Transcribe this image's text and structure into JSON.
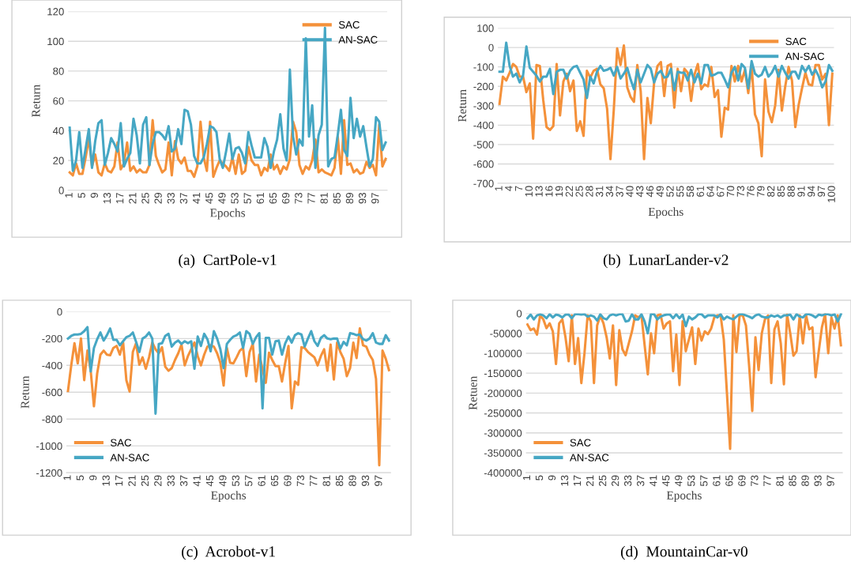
{
  "chart_data": [
    {
      "type": "line",
      "title": "(a)  CartPole-v1",
      "xlabel": "Epochs",
      "ylabel": "Return",
      "ylim": [
        0,
        120
      ],
      "yticks": [
        0,
        20,
        40,
        60,
        80,
        100,
        120
      ],
      "grid": "y",
      "legend": "top right",
      "categories": [
        "1",
        null,
        null,
        null,
        "5",
        null,
        null,
        null,
        "9",
        null,
        null,
        null,
        "13",
        null,
        null,
        null,
        "17",
        null,
        null,
        null,
        "21",
        null,
        null,
        null,
        "25",
        null,
        null,
        null,
        "29",
        null,
        null,
        null,
        "33",
        null,
        null,
        null,
        "37",
        null,
        null,
        null,
        "41",
        null,
        null,
        null,
        "45",
        null,
        null,
        null,
        "49",
        null,
        null,
        null,
        "53",
        null,
        null,
        null,
        "57",
        null,
        null,
        null,
        "61",
        null,
        null,
        null,
        "65",
        null,
        null,
        null,
        "69",
        null,
        null,
        null,
        "73",
        null,
        null,
        null,
        "77",
        null,
        null,
        null,
        "81",
        null,
        null,
        null,
        "85",
        null,
        null,
        null,
        "89",
        null,
        null,
        null,
        "93",
        null,
        null,
        null,
        "97",
        null,
        null,
        null
      ],
      "series": [
        {
          "name": "SAC",
          "color": "#f4913a",
          "values": [
            12,
            10,
            18,
            11,
            11,
            22,
            35,
            16,
            24,
            12,
            10,
            18,
            13,
            12,
            16,
            32,
            14,
            18,
            32,
            13,
            16,
            12,
            14,
            12,
            12,
            17,
            47,
            23,
            17,
            12,
            14,
            32,
            10,
            33,
            21,
            18,
            22,
            13,
            13,
            9,
            16,
            46,
            22,
            13,
            46,
            9,
            15,
            20,
            18,
            16,
            13,
            22,
            11,
            24,
            11,
            13,
            29,
            20,
            17,
            17,
            10,
            15,
            13,
            24,
            14,
            17,
            11,
            16,
            14,
            21,
            46,
            39,
            17,
            11,
            16,
            14,
            20,
            34,
            12,
            14,
            12,
            11,
            10,
            15,
            36,
            11,
            47,
            17,
            18,
            12,
            14,
            11,
            12,
            19,
            15,
            17,
            10,
            44,
            16,
            21
          ]
        },
        {
          "name": "AN-SAC",
          "color": "#46a7c4",
          "values": [
            42,
            13,
            20,
            39,
            15,
            28,
            41,
            15,
            33,
            45,
            47,
            17,
            25,
            35,
            31,
            26,
            45,
            16,
            21,
            25,
            48,
            37,
            18,
            44,
            49,
            17,
            31,
            39,
            39,
            37,
            34,
            43,
            26,
            28,
            41,
            31,
            54,
            53,
            44,
            23,
            18,
            18,
            22,
            31,
            43,
            42,
            39,
            21,
            15,
            26,
            38,
            21,
            28,
            29,
            25,
            18,
            39,
            30,
            22,
            22,
            22,
            35,
            29,
            15,
            26,
            34,
            51,
            28,
            20,
            81,
            36,
            24,
            34,
            30,
            102,
            36,
            57,
            15,
            37,
            44,
            109,
            16,
            21,
            22,
            37,
            54,
            27,
            23,
            62,
            35,
            48,
            36,
            43,
            29,
            16,
            21,
            49,
            46,
            27,
            32
          ]
        }
      ]
    },
    {
      "type": "line",
      "title": "(b)  LunarLander-v2",
      "xlabel": "Epochs",
      "ylabel": "Return",
      "ylim": [
        -700,
        100
      ],
      "yticks": [
        -700,
        -600,
        -500,
        -400,
        -300,
        -200,
        -100,
        0,
        100
      ],
      "grid": "y",
      "legend": "top right",
      "categories": [
        "1",
        null,
        null,
        "4",
        null,
        null,
        "7",
        null,
        null,
        "10",
        null,
        null,
        "13",
        null,
        null,
        "16",
        null,
        null,
        "19",
        null,
        null,
        "22",
        null,
        null,
        "25",
        null,
        null,
        "28",
        null,
        null,
        "31",
        null,
        null,
        "34",
        null,
        null,
        "37",
        null,
        null,
        "40",
        null,
        null,
        "43",
        null,
        null,
        "46",
        null,
        null,
        "49",
        null,
        null,
        "52",
        null,
        null,
        "55",
        null,
        null,
        "58",
        null,
        null,
        "61",
        null,
        null,
        "64",
        null,
        null,
        "67",
        null,
        null,
        "70",
        null,
        null,
        "73",
        null,
        null,
        "76",
        null,
        null,
        "79",
        null,
        null,
        "82",
        null,
        null,
        "85",
        null,
        null,
        "88",
        null,
        null,
        "91",
        null,
        null,
        "94",
        null,
        null,
        "97",
        null,
        null,
        "100"
      ],
      "series": [
        {
          "name": "SAC",
          "color": "#f4913a",
          "values": [
            -290,
            -150,
            -170,
            -130,
            -85,
            -100,
            -150,
            -150,
            -230,
            -185,
            -470,
            -90,
            -95,
            -270,
            -410,
            -425,
            -405,
            -85,
            -350,
            -175,
            -135,
            -225,
            -170,
            -430,
            -380,
            -455,
            -120,
            -155,
            -120,
            -110,
            -190,
            -210,
            -315,
            -575,
            -320,
            -5,
            -90,
            10,
            -205,
            -255,
            -280,
            -90,
            -225,
            -575,
            -260,
            -390,
            -180,
            -95,
            -75,
            -250,
            -95,
            -85,
            -310,
            -110,
            -225,
            -110,
            -130,
            -275,
            -140,
            -85,
            -215,
            -190,
            -200,
            -100,
            -255,
            -220,
            -460,
            -310,
            -320,
            -95,
            -175,
            -95,
            -175,
            -115,
            -235,
            -95,
            -345,
            -390,
            -560,
            -165,
            -330,
            -385,
            -300,
            -115,
            -325,
            -200,
            -100,
            -170,
            -410,
            -295,
            -210,
            -130,
            -190,
            -195,
            -90,
            -90,
            -165,
            -135,
            -400,
            -135
          ]
        },
        {
          "name": "AN-SAC",
          "color": "#46a7c4",
          "values": [
            -125,
            -125,
            25,
            -95,
            -150,
            -135,
            -180,
            -145,
            5,
            -105,
            -125,
            -145,
            -175,
            -150,
            -150,
            -110,
            -240,
            -125,
            -115,
            -115,
            -160,
            -120,
            -100,
            -95,
            -130,
            -165,
            -260,
            -150,
            -185,
            -125,
            -95,
            -120,
            -115,
            -105,
            -145,
            -100,
            -160,
            -135,
            -105,
            -165,
            -215,
            -115,
            -180,
            -135,
            -90,
            -110,
            -180,
            -135,
            -120,
            -155,
            -150,
            -110,
            -220,
            -125,
            -130,
            -130,
            -170,
            -115,
            -180,
            -135,
            -185,
            -90,
            -90,
            -145,
            -140,
            -130,
            -130,
            -165,
            -205,
            -130,
            -100,
            -170,
            -85,
            -105,
            -210,
            -70,
            -135,
            -150,
            -140,
            -100,
            -150,
            -130,
            -95,
            -150,
            -95,
            -130,
            -160,
            -125,
            -125,
            -160,
            -95,
            -125,
            -95,
            -140,
            -115,
            -150,
            -205,
            -175,
            -90,
            -120
          ]
        }
      ]
    },
    {
      "type": "line",
      "title": "(c)  Acrobot-v1",
      "xlabel": "Epochs",
      "ylabel": "Return",
      "ylim": [
        -1200,
        0
      ],
      "yticks": [
        -1200,
        -1000,
        -800,
        -600,
        -400,
        -200,
        0
      ],
      "grid": "y",
      "legend": "bottom left",
      "categories": [
        "1",
        null,
        null,
        null,
        "5",
        null,
        null,
        null,
        "9",
        null,
        null,
        null,
        "13",
        null,
        null,
        null,
        "17",
        null,
        null,
        null,
        "21",
        null,
        null,
        null,
        "25",
        null,
        null,
        null,
        "29",
        null,
        null,
        null,
        "33",
        null,
        null,
        null,
        "37",
        null,
        null,
        null,
        "41",
        null,
        null,
        null,
        "45",
        null,
        null,
        null,
        "49",
        null,
        null,
        null,
        "53",
        null,
        null,
        null,
        "57",
        null,
        null,
        null,
        "61",
        null,
        null,
        null,
        "65",
        null,
        null,
        null,
        "69",
        null,
        null,
        null,
        "73",
        null,
        null,
        null,
        "77",
        null,
        null,
        null,
        "81",
        null,
        null,
        null,
        "85",
        null,
        null,
        null,
        "89",
        null,
        null,
        null,
        "93",
        null,
        null,
        null,
        "97",
        null,
        null,
        null
      ],
      "series": [
        {
          "name": "SAC",
          "color": "#f4913a",
          "values": [
            -590,
            -400,
            -235,
            -385,
            -200,
            -510,
            -290,
            -440,
            -705,
            -460,
            -320,
            -290,
            -320,
            -325,
            -270,
            -255,
            -320,
            -230,
            -510,
            -595,
            -300,
            -235,
            -395,
            -340,
            -425,
            -340,
            -230,
            -280,
            -310,
            -265,
            -410,
            -440,
            -420,
            -360,
            -310,
            -245,
            -400,
            -330,
            -280,
            -230,
            -330,
            -400,
            -320,
            -260,
            -250,
            -260,
            -310,
            -380,
            -550,
            -270,
            -380,
            -385,
            -340,
            -290,
            -270,
            -480,
            -300,
            -240,
            -520,
            -320,
            -430,
            -530,
            -305,
            -360,
            -405,
            -405,
            -520,
            -380,
            -255,
            -720,
            -520,
            -545,
            -265,
            -270,
            -300,
            -320,
            -340,
            -400,
            -330,
            -280,
            -440,
            -245,
            -505,
            -230,
            -300,
            -350,
            -480,
            -420,
            -230,
            -345,
            -125,
            -250,
            -260,
            -320,
            -360,
            -500,
            -1145,
            -290,
            -350,
            -435
          ]
        },
        {
          "name": "AN-SAC",
          "color": "#46a7c4",
          "values": [
            -200,
            -180,
            -170,
            -170,
            -165,
            -145,
            -115,
            -445,
            -270,
            -205,
            -155,
            -215,
            -175,
            -125,
            -210,
            -210,
            -250,
            -220,
            -190,
            -180,
            -155,
            -225,
            -300,
            -200,
            -185,
            -155,
            -200,
            -760,
            -240,
            -235,
            -180,
            -165,
            -260,
            -230,
            -215,
            -240,
            -220,
            -235,
            -220,
            -425,
            -185,
            -255,
            -165,
            -205,
            -295,
            -145,
            -200,
            -280,
            -420,
            -240,
            -210,
            -185,
            -175,
            -155,
            -270,
            -145,
            -165,
            -240,
            -190,
            -160,
            -720,
            -195,
            -195,
            -320,
            -220,
            -215,
            -320,
            -235,
            -185,
            -230,
            -175,
            -160,
            -170,
            -260,
            -200,
            -145,
            -220,
            -255,
            -195,
            -175,
            -200,
            -205,
            -200,
            -200,
            -275,
            -225,
            -250,
            -160,
            -165,
            -175,
            -170,
            -205,
            -215,
            -200,
            -160,
            -230,
            -240,
            -240,
            -175,
            -215
          ]
        }
      ]
    },
    {
      "type": "line",
      "title": "(d)  MountainCar-v0",
      "xlabel": "Epochs",
      "ylabel": "Retuen",
      "ylim": [
        -400000,
        0
      ],
      "yticks": [
        -400000,
        -350000,
        -300000,
        -250000,
        -200000,
        -150000,
        -100000,
        -50000,
        0
      ],
      "grid": "y",
      "legend": "bottom left",
      "categories": [
        "1",
        null,
        null,
        null,
        "5",
        null,
        null,
        null,
        "9",
        null,
        null,
        null,
        "13",
        null,
        null,
        null,
        "17",
        null,
        null,
        null,
        "21",
        null,
        null,
        null,
        "25",
        null,
        null,
        null,
        "29",
        null,
        null,
        null,
        "33",
        null,
        null,
        null,
        "37",
        null,
        null,
        null,
        "41",
        null,
        null,
        null,
        "45",
        null,
        null,
        null,
        "49",
        null,
        null,
        null,
        "53",
        null,
        null,
        null,
        "57",
        null,
        null,
        null,
        "61",
        null,
        null,
        null,
        "65",
        null,
        null,
        null,
        "69",
        null,
        null,
        null,
        "73",
        null,
        null,
        null,
        "77",
        null,
        null,
        null,
        "81",
        null,
        null,
        null,
        "85",
        null,
        null,
        null,
        "89",
        null,
        null,
        null,
        "93",
        null,
        null,
        null,
        "97",
        null,
        null,
        null
      ],
      "series": [
        {
          "name": "SAC",
          "color": "#f4913a",
          "values": [
            -28000,
            -42000,
            -38000,
            -53000,
            -5000,
            -15000,
            -37000,
            -25000,
            -45000,
            -127000,
            -25000,
            -15000,
            -60000,
            -120000,
            -5000,
            -127000,
            -62000,
            -175000,
            -100000,
            -5000,
            -20000,
            -175000,
            -30000,
            -5000,
            -25000,
            -60000,
            -113000,
            -30000,
            -180000,
            -42000,
            -90000,
            -105000,
            -75000,
            -45000,
            -5000,
            -10000,
            -5000,
            -80000,
            -153000,
            -50000,
            -100000,
            -5000,
            -2000,
            -38000,
            -25000,
            -20000,
            -145000,
            -53000,
            -180000,
            -20000,
            -95000,
            -65000,
            -35000,
            -127000,
            -38000,
            -68000,
            -45000,
            -52000,
            -38000,
            -10000,
            -5000,
            -5000,
            -65000,
            -200000,
            -340000,
            -5000,
            -97000,
            -5000,
            -5000,
            -30000,
            -130000,
            -245000,
            -60000,
            -142000,
            -50000,
            -15000,
            -5000,
            -175000,
            -40000,
            -20000,
            -75000,
            -178000,
            -3000,
            -50000,
            -106000,
            -95000,
            -5000,
            -75000,
            -5000,
            -40000,
            -35000,
            -160000,
            -95000,
            -35000,
            -2000,
            -100000,
            -10000,
            -38000,
            -5000,
            -80000
          ]
        },
        {
          "name": "AN-SAC",
          "color": "#46a7c4",
          "values": [
            -12000,
            -3000,
            -15000,
            -5000,
            -2000,
            -5000,
            -12000,
            -2000,
            -10000,
            -3000,
            -5000,
            -10000,
            -3000,
            -3000,
            -12000,
            -2000,
            -2000,
            -3000,
            -2000,
            -8000,
            -5000,
            -8000,
            -18000,
            -2000,
            -12000,
            -15000,
            -5000,
            -2000,
            -5000,
            -2000,
            -2000,
            -20000,
            -18000,
            -2000,
            -15000,
            -15000,
            -2000,
            -20000,
            -50000,
            -2000,
            -2000,
            -15000,
            -8000,
            -5000,
            -3000,
            -3000,
            -12000,
            -2000,
            -12000,
            -3000,
            -32000,
            -8000,
            -15000,
            -10000,
            -2000,
            -2000,
            -10000,
            -5000,
            -5000,
            -5000,
            -10000,
            -2000,
            -15000,
            -8000,
            -12000,
            -15000,
            -8000,
            -2000,
            -2000,
            -5000,
            -8000,
            -12000,
            -5000,
            -2000,
            -8000,
            -10000,
            -10000,
            -5000,
            -8000,
            -5000,
            -10000,
            -5000,
            -5000,
            -3000,
            -15000,
            -2000,
            -8000,
            -10000,
            -2000,
            -2000,
            -5000,
            -10000,
            -3000,
            -5000,
            -2000,
            -2000,
            -5000,
            -2000,
            -20000,
            -2000
          ]
        }
      ]
    }
  ]
}
